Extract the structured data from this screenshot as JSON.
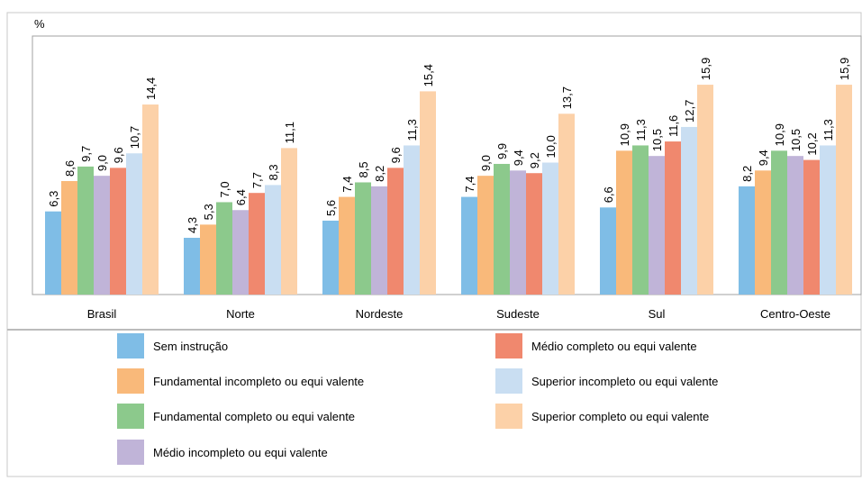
{
  "chart_data": {
    "type": "bar",
    "y_label": "%",
    "categories": [
      "Brasil",
      "Norte",
      "Nordeste",
      "Sudeste",
      "Sul",
      "Centro-Oeste"
    ],
    "ylim": [
      0,
      20
    ],
    "series": [
      {
        "name": "Sem instrução",
        "color": "#7fbde6",
        "values": [
          6.3,
          4.3,
          5.6,
          7.4,
          6.6,
          8.2
        ],
        "value_labels": [
          "6,3",
          "4,3",
          "5,6",
          "7,4",
          "6,6",
          "8,2"
        ]
      },
      {
        "name": "Fundamental incompleto ou equi valente",
        "color": "#f9b97a",
        "values": [
          8.6,
          5.3,
          7.4,
          9.0,
          10.9,
          9.4
        ],
        "value_labels": [
          "8,6",
          "5,3",
          "7,4",
          "9,0",
          "10,9",
          "9,4"
        ]
      },
      {
        "name": "Fundamental completo ou equi valente",
        "color": "#8cc98c",
        "values": [
          9.7,
          7.0,
          8.5,
          9.9,
          11.3,
          10.9
        ],
        "value_labels": [
          "9,7",
          "7,0",
          "8,5",
          "9,9",
          "11,3",
          "10,9"
        ]
      },
      {
        "name": "Médio incompleto ou equi valente",
        "color": "#c0b4d8",
        "values": [
          9.0,
          6.4,
          8.2,
          9.4,
          10.5,
          10.5
        ],
        "value_labels": [
          "9,0",
          "6,4",
          "8,2",
          "9,4",
          "10,5",
          "10,5"
        ]
      },
      {
        "name": "Médio completo ou equi valente",
        "color": "#f0886e",
        "values": [
          9.6,
          7.7,
          9.6,
          9.2,
          11.6,
          10.2
        ],
        "value_labels": [
          "9,6",
          "7,7",
          "9,6",
          "9,2",
          "11,6",
          "10,2"
        ]
      },
      {
        "name": "Superior incompleto ou equi valente",
        "color": "#c9def2",
        "values": [
          10.7,
          8.3,
          11.3,
          10.0,
          12.7,
          11.3
        ],
        "value_labels": [
          "10,7",
          "8,3",
          "11,3",
          "10,0",
          "12,7",
          "11,3"
        ]
      },
      {
        "name": "Superior completo ou equi valente",
        "color": "#fcd1a8",
        "values": [
          14.4,
          11.1,
          15.4,
          13.7,
          15.9,
          15.9
        ],
        "value_labels": [
          "14,4",
          "11,1",
          "15,4",
          "13,7",
          "15,9",
          "15,9"
        ]
      }
    ]
  }
}
